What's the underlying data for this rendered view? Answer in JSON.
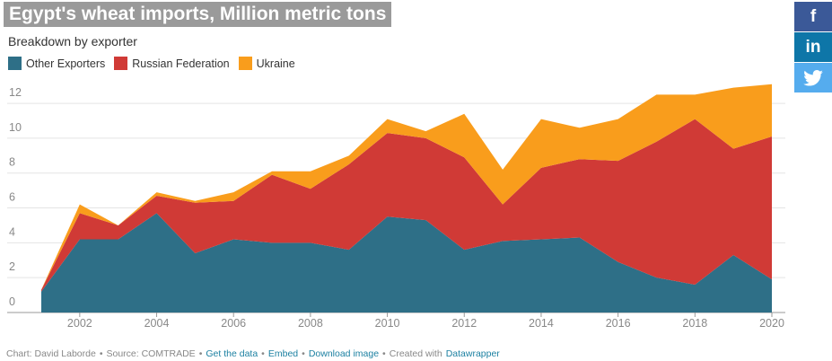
{
  "chart_data": {
    "type": "stacked_area",
    "title": "Egypt's wheat imports, Million metric tons",
    "subtitle": "Breakdown by exporter",
    "x": [
      2001,
      2002,
      2003,
      2004,
      2005,
      2006,
      2007,
      2008,
      2009,
      2010,
      2011,
      2012,
      2013,
      2014,
      2015,
      2016,
      2017,
      2018,
      2019,
      2020
    ],
    "series": [
      {
        "name": "Other Exporters",
        "color": "#2e6f87",
        "values": [
          1.2,
          4.2,
          4.2,
          5.7,
          3.4,
          4.2,
          4.0,
          4.0,
          3.6,
          5.5,
          5.3,
          3.6,
          4.1,
          4.2,
          4.3,
          2.9,
          2.0,
          1.6,
          3.3,
          1.9
        ]
      },
      {
        "name": "Russian Federation",
        "color": "#d03a36",
        "values": [
          0.1,
          1.5,
          0.8,
          1.0,
          2.9,
          2.2,
          3.9,
          3.1,
          4.9,
          4.8,
          4.7,
          5.3,
          2.1,
          4.1,
          4.5,
          5.8,
          7.8,
          9.5,
          6.1,
          8.2
        ]
      },
      {
        "name": "Ukraine",
        "color": "#f99d1c",
        "values": [
          0,
          0.5,
          0,
          0.2,
          0.1,
          0.5,
          0.2,
          1.0,
          0.5,
          0.8,
          0.4,
          2.5,
          2.0,
          2.8,
          1.8,
          2.4,
          2.7,
          1.4,
          3.5,
          3.0
        ]
      }
    ],
    "xlim": [
      2001,
      2020
    ],
    "xticks": [
      2002,
      2004,
      2006,
      2008,
      2010,
      2012,
      2014,
      2016,
      2018,
      2020
    ],
    "ylim": [
      0,
      13.5
    ],
    "yticks": [
      0,
      2,
      4,
      6,
      8,
      10,
      12
    ],
    "grid": true,
    "footer": {
      "separator": "•",
      "items": [
        {
          "text": "Chart: David Laborde",
          "link": false
        },
        {
          "text": "Source: COMTRADE",
          "link": false
        },
        {
          "text": "Get the data",
          "link": true
        },
        {
          "text": "Embed",
          "link": true
        },
        {
          "text": "Download image",
          "link": true
        },
        {
          "text": "Created with",
          "link": false,
          "tail": "Datawrapper"
        }
      ]
    }
  },
  "social": {
    "facebook": "f",
    "linkedin": "in"
  }
}
